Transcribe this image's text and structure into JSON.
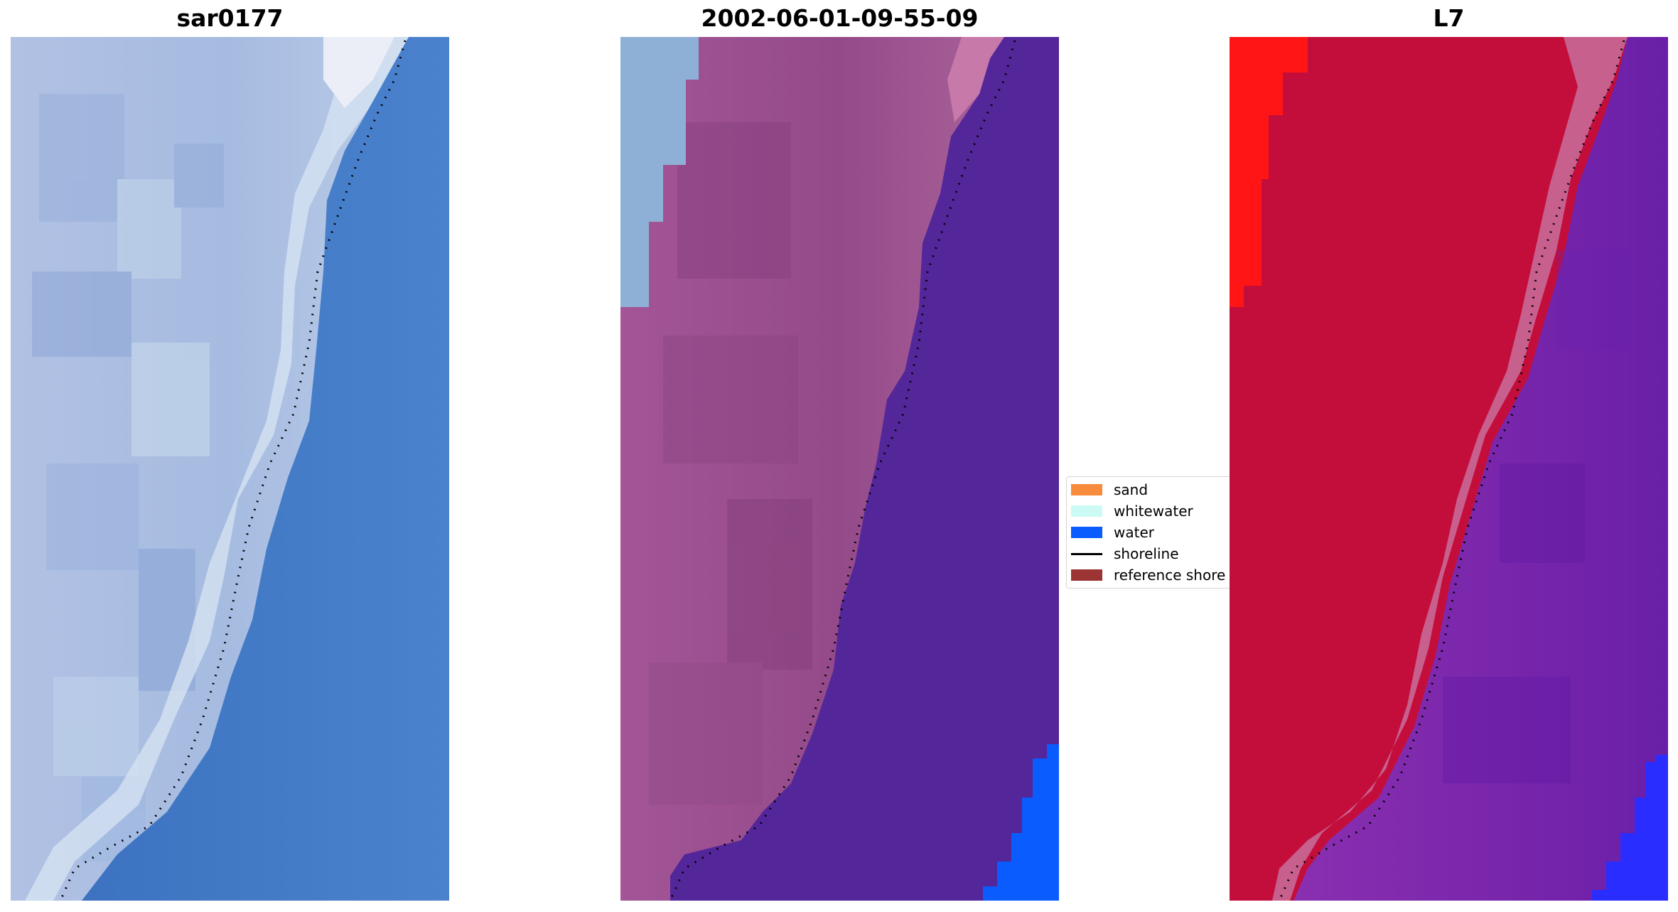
{
  "panels": [
    {
      "title": "sar0177",
      "kind": "rgb-image"
    },
    {
      "title": "2002-06-01-09-55-09",
      "kind": "classified-image"
    },
    {
      "title": "L7",
      "kind": "index-image"
    }
  ],
  "legend": {
    "items": [
      {
        "label": "sand",
        "color": "#f78d3c",
        "kind": "patch"
      },
      {
        "label": "whitewater",
        "color": "#ccfaf5",
        "kind": "patch"
      },
      {
        "label": "water",
        "color": "#0a5cff",
        "kind": "patch"
      },
      {
        "label": "shoreline",
        "color": "#000000",
        "kind": "line"
      },
      {
        "label": "reference shore",
        "color": "#9c3433",
        "kind": "patch"
      }
    ]
  },
  "colors": {
    "rgb_land": "#a9bde0",
    "rgb_water": "#3f78c4",
    "rgb_bright": "#f2f3f8",
    "class_land": "#9a4f8e",
    "class_ocean": "#53269a",
    "class_blue": "#0a5cff",
    "class_light": "#8fb0d6",
    "index_land": "#c30e3c",
    "index_red": "#ff1515",
    "index_ocean": "#7e2aa8",
    "index_blue": "#2a2dff",
    "shoreline": "#000000"
  }
}
